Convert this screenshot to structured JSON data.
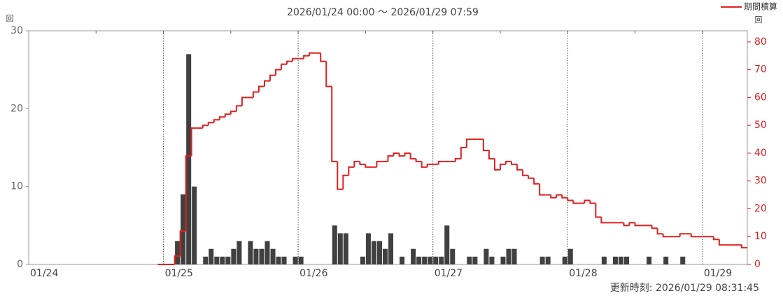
{
  "chart_data": {
    "type": "bar",
    "title": "2026/01/24 00:00 ～ 2026/01/29 07:59",
    "y_label": "回",
    "y2_label": "回",
    "updated": "更新時刻: 2026/01/29 08:31:45",
    "categories": [
      "01/24",
      null,
      null,
      null,
      null,
      null,
      null,
      null,
      null,
      null,
      null,
      null,
      null,
      null,
      null,
      null,
      null,
      null,
      null,
      null,
      null,
      null,
      null,
      null,
      "01/25",
      null,
      null,
      null,
      null,
      null,
      null,
      null,
      null,
      null,
      null,
      null,
      null,
      null,
      null,
      null,
      null,
      null,
      null,
      null,
      null,
      null,
      null,
      null,
      "01/26",
      null,
      null,
      null,
      null,
      null,
      null,
      null,
      null,
      null,
      null,
      null,
      null,
      null,
      null,
      null,
      null,
      null,
      null,
      null,
      null,
      null,
      null,
      null,
      "01/27",
      null,
      null,
      null,
      null,
      null,
      null,
      null,
      null,
      null,
      null,
      null,
      null,
      null,
      null,
      null,
      null,
      null,
      null,
      null,
      null,
      null,
      null,
      null,
      "01/28",
      null,
      null,
      null,
      null,
      null,
      null,
      null,
      null,
      null,
      null,
      null,
      null,
      null,
      null,
      null,
      null,
      null,
      null,
      null,
      null,
      null,
      null,
      null,
      "01/29",
      null,
      null,
      null,
      null,
      null,
      null,
      null
    ],
    "series": [
      {
        "color": "#404040",
        "values": [
          0,
          0,
          0,
          0,
          0,
          0,
          0,
          0,
          0,
          0,
          0,
          0,
          0,
          0,
          0,
          0,
          0,
          0,
          0,
          0,
          0,
          0,
          0,
          0,
          0,
          0,
          3,
          9,
          27,
          10,
          0,
          1,
          2,
          1,
          1,
          1,
          2,
          3,
          0,
          3,
          2,
          2,
          3,
          2,
          1,
          1,
          0,
          1,
          1,
          0,
          0,
          0,
          0,
          0,
          5,
          4,
          4,
          0,
          0,
          1,
          4,
          3,
          3,
          2,
          4,
          0,
          1,
          0,
          2,
          1,
          1,
          1,
          1,
          1,
          5,
          2,
          0,
          0,
          1,
          1,
          0,
          2,
          1,
          0,
          1,
          2,
          2,
          0,
          0,
          0,
          0,
          1,
          1,
          0,
          0,
          1,
          2,
          0,
          0,
          0,
          0,
          0,
          1,
          0,
          1,
          1,
          1,
          0,
          0,
          0,
          1,
          0,
          0,
          1,
          0,
          0,
          1,
          0,
          0,
          0,
          0,
          0,
          0,
          0,
          0,
          0,
          0,
          0
        ]
      },
      {
        "name": "期間積算",
        "type": "step",
        "axis": "y2",
        "color": "#e02020",
        "values": [
          null,
          null,
          null,
          null,
          null,
          null,
          null,
          null,
          null,
          null,
          null,
          null,
          null,
          null,
          null,
          null,
          null,
          null,
          null,
          null,
          null,
          null,
          null,
          0,
          0,
          0,
          3,
          12,
          39,
          49,
          49,
          50,
          51,
          52,
          53,
          54,
          55,
          57,
          60,
          60,
          62,
          64,
          66,
          68,
          70,
          72,
          73,
          74,
          74,
          75,
          76,
          76,
          73,
          64,
          37,
          27,
          32,
          35,
          37,
          36,
          35,
          35,
          37,
          37,
          39,
          40,
          39,
          40,
          38,
          37,
          35,
          36,
          36,
          37,
          37,
          37,
          38,
          42,
          45,
          45,
          45,
          41,
          38,
          34,
          36,
          37,
          36,
          34,
          32,
          31,
          29,
          25,
          25,
          24,
          25,
          24,
          23,
          22,
          22,
          23,
          22,
          17,
          15,
          15,
          15,
          15,
          14,
          15,
          14,
          14,
          14,
          13,
          11,
          10,
          10,
          10,
          11,
          11,
          10,
          10,
          10,
          10,
          9,
          7,
          7,
          7,
          7,
          6
        ]
      }
    ],
    "ylim": [
      0,
      30
    ],
    "yticks": [
      0,
      10,
      20,
      30
    ],
    "y2lim": [
      0,
      84
    ],
    "y2ticks": [
      0,
      10,
      20,
      30,
      40,
      50,
      60,
      70,
      80
    ],
    "legend": "top-right"
  }
}
